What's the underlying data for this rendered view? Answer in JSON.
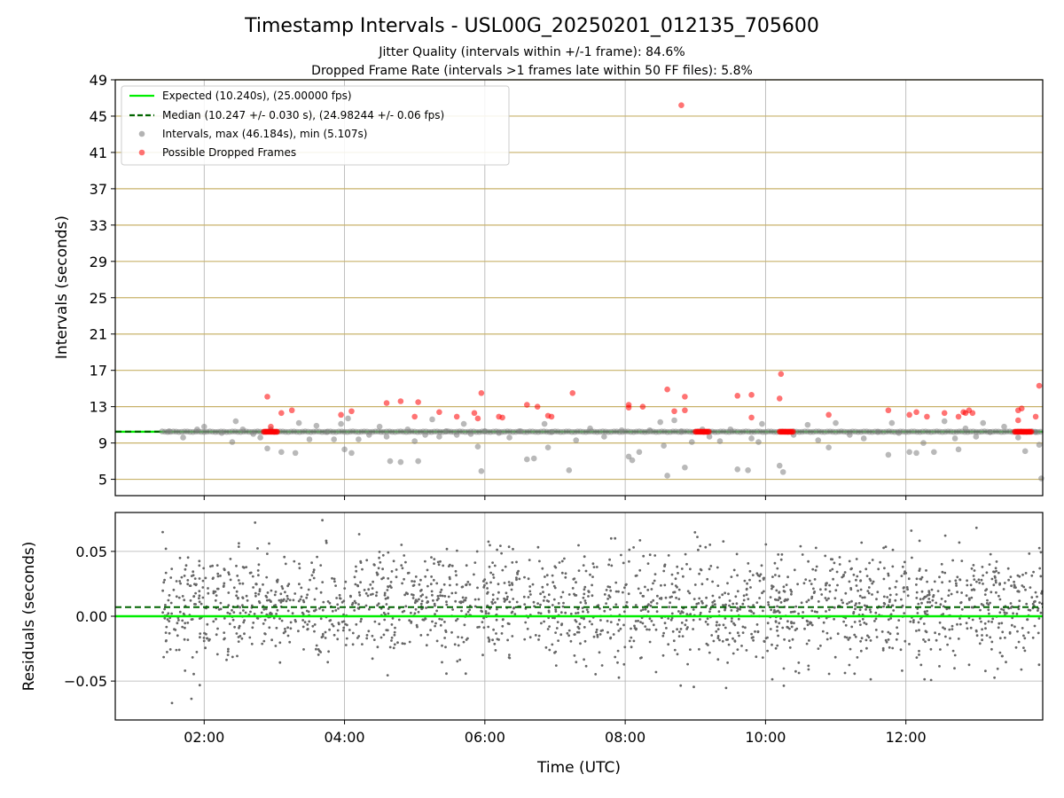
{
  "chart_data": [
    {
      "type": "scatter",
      "title": "Timestamp Intervals - USL00G_20250201_012135_705600",
      "subtitles": [
        "Jitter Quality (intervals within +/-1 frame): 84.6%",
        "Dropped Frame Rate (intervals >1 frames late within 50 FF files): 5.8%"
      ],
      "ylabel": "Intervals (seconds)",
      "xlim": [
        0.733,
        13.95
      ],
      "ylim": [
        3.2,
        49
      ],
      "yticks": [
        "5",
        "9",
        "13",
        "17",
        "21",
        "25",
        "29",
        "33",
        "37",
        "41",
        "45",
        "49"
      ],
      "grid": true,
      "legend_position": "upper-left",
      "expected_value": 10.24,
      "median_value": 10.247,
      "legend": [
        "Expected (10.240s), (25.00000 fps)",
        "Median (10.247 +/- 0.030 s), (24.98244 +/- 0.06 fps)",
        "Intervals, max (46.184s), min (5.107s)",
        "Possible Dropped Frames"
      ],
      "series": [
        {
          "name": "Intervals, max (46.184s), min (5.107s)",
          "color": "#808080",
          "points": [
            [
              1.5,
              10.3
            ],
            [
              1.7,
              9.6
            ],
            [
              1.9,
              10.5
            ],
            [
              2.0,
              10.8
            ],
            [
              2.25,
              10.1
            ],
            [
              2.4,
              9.1
            ],
            [
              2.45,
              11.4
            ],
            [
              2.55,
              10.5
            ],
            [
              2.7,
              10.0
            ],
            [
              2.8,
              9.6
            ],
            [
              2.9,
              8.4
            ],
            [
              2.95,
              10.5
            ],
            [
              3.1,
              8.0
            ],
            [
              3.3,
              7.9
            ],
            [
              3.35,
              11.2
            ],
            [
              3.5,
              9.4
            ],
            [
              3.6,
              10.9
            ],
            [
              3.75,
              10.2
            ],
            [
              3.85,
              9.4
            ],
            [
              3.95,
              11.1
            ],
            [
              4.0,
              8.3
            ],
            [
              4.05,
              11.7
            ],
            [
              4.1,
              7.9
            ],
            [
              4.2,
              9.4
            ],
            [
              4.35,
              9.9
            ],
            [
              4.5,
              10.8
            ],
            [
              4.6,
              9.7
            ],
            [
              4.65,
              7.0
            ],
            [
              4.8,
              6.9
            ],
            [
              4.9,
              10.5
            ],
            [
              5.0,
              9.2
            ],
            [
              5.05,
              7.0
            ],
            [
              5.15,
              9.9
            ],
            [
              5.25,
              11.6
            ],
            [
              5.35,
              9.7
            ],
            [
              5.45,
              10.3
            ],
            [
              5.6,
              9.9
            ],
            [
              5.7,
              11.1
            ],
            [
              5.8,
              10.0
            ],
            [
              5.9,
              8.6
            ],
            [
              5.95,
              5.9
            ],
            [
              6.0,
              10.3
            ],
            [
              6.2,
              10.1
            ],
            [
              6.35,
              9.6
            ],
            [
              6.5,
              10.3
            ],
            [
              6.6,
              7.2
            ],
            [
              6.7,
              7.3
            ],
            [
              6.85,
              11.1
            ],
            [
              6.9,
              8.5
            ],
            [
              6.95,
              10.2
            ],
            [
              7.2,
              6.0
            ],
            [
              7.3,
              9.3
            ],
            [
              7.5,
              10.6
            ],
            [
              7.7,
              9.7
            ],
            [
              7.95,
              10.4
            ],
            [
              8.05,
              7.5
            ],
            [
              8.1,
              7.1
            ],
            [
              8.2,
              8.0
            ],
            [
              8.35,
              10.4
            ],
            [
              8.5,
              11.3
            ],
            [
              8.55,
              8.7
            ],
            [
              8.6,
              5.4
            ],
            [
              8.7,
              11.5
            ],
            [
              8.8,
              10.3
            ],
            [
              8.85,
              6.3
            ],
            [
              8.95,
              9.1
            ],
            [
              9.1,
              10.5
            ],
            [
              9.2,
              9.7
            ],
            [
              9.35,
              9.2
            ],
            [
              9.5,
              10.5
            ],
            [
              9.6,
              6.1
            ],
            [
              9.75,
              6.0
            ],
            [
              9.8,
              9.5
            ],
            [
              9.9,
              9.1
            ],
            [
              9.95,
              11.1
            ],
            [
              10.2,
              6.5
            ],
            [
              10.25,
              5.8
            ],
            [
              10.4,
              9.9
            ],
            [
              10.6,
              11.0
            ],
            [
              10.75,
              9.3
            ],
            [
              10.9,
              8.5
            ],
            [
              11.0,
              11.2
            ],
            [
              11.2,
              9.9
            ],
            [
              11.4,
              9.5
            ],
            [
              11.6,
              10.2
            ],
            [
              11.75,
              7.7
            ],
            [
              11.8,
              11.2
            ],
            [
              11.9,
              10.1
            ],
            [
              12.05,
              8.0
            ],
            [
              12.15,
              7.9
            ],
            [
              12.25,
              9.0
            ],
            [
              12.4,
              8.0
            ],
            [
              12.55,
              11.4
            ],
            [
              12.7,
              9.5
            ],
            [
              12.75,
              8.3
            ],
            [
              12.85,
              10.6
            ],
            [
              13.0,
              9.7
            ],
            [
              13.1,
              11.2
            ],
            [
              13.2,
              10.2
            ],
            [
              13.4,
              10.8
            ],
            [
              13.6,
              9.6
            ],
            [
              13.7,
              8.1
            ],
            [
              13.85,
              10.2
            ],
            [
              13.9,
              8.8
            ],
            [
              13.93,
              5.1
            ]
          ]
        },
        {
          "name": "Possible Dropped Frames",
          "color": "#ff0000",
          "points": [
            [
              2.9,
              14.1
            ],
            [
              2.95,
              10.8
            ],
            [
              3.1,
              12.3
            ],
            [
              3.25,
              12.6
            ],
            [
              3.95,
              12.1
            ],
            [
              4.1,
              12.5
            ],
            [
              4.6,
              13.4
            ],
            [
              4.8,
              13.6
            ],
            [
              5.0,
              11.9
            ],
            [
              5.05,
              13.5
            ],
            [
              5.35,
              12.4
            ],
            [
              5.6,
              11.9
            ],
            [
              5.85,
              12.3
            ],
            [
              5.9,
              11.7
            ],
            [
              5.95,
              14.5
            ],
            [
              6.2,
              11.9
            ],
            [
              6.25,
              11.8
            ],
            [
              6.6,
              13.2
            ],
            [
              6.75,
              13.0
            ],
            [
              6.9,
              12.0
            ],
            [
              6.95,
              11.9
            ],
            [
              7.25,
              14.5
            ],
            [
              8.05,
              12.9
            ],
            [
              8.05,
              13.2
            ],
            [
              8.25,
              13.0
            ],
            [
              8.6,
              14.9
            ],
            [
              8.7,
              12.5
            ],
            [
              8.85,
              12.6
            ],
            [
              8.85,
              14.1
            ],
            [
              9.6,
              14.2
            ],
            [
              9.8,
              14.3
            ],
            [
              9.8,
              11.8
            ],
            [
              10.2,
              13.9
            ],
            [
              10.22,
              16.6
            ],
            [
              10.9,
              12.1
            ],
            [
              11.75,
              12.6
            ],
            [
              12.05,
              12.1
            ],
            [
              12.15,
              12.4
            ],
            [
              12.3,
              11.9
            ],
            [
              12.55,
              12.3
            ],
            [
              12.75,
              11.9
            ],
            [
              12.82,
              12.4
            ],
            [
              12.85,
              12.3
            ],
            [
              12.9,
              12.6
            ],
            [
              12.95,
              12.3
            ],
            [
              13.6,
              11.5
            ],
            [
              13.6,
              12.6
            ],
            [
              13.65,
              12.8
            ],
            [
              13.85,
              11.9
            ],
            [
              13.9,
              15.3
            ],
            [
              8.8,
              46.2
            ]
          ],
          "clusters": [
            [
              2.85,
              3.05
            ],
            [
              9.0,
              9.2
            ],
            [
              10.2,
              10.4
            ],
            [
              13.55,
              13.8
            ]
          ],
          "cluster_value": 10.24
        }
      ]
    },
    {
      "type": "scatter",
      "ylabel": "Residuals (seconds)",
      "xlabel": "Time (UTC)",
      "xlim": [
        0.733,
        13.95
      ],
      "ylim": [
        -0.08,
        0.08
      ],
      "xticks": [
        {
          "value": 2,
          "label": "02:00"
        },
        {
          "value": 4,
          "label": "04:00"
        },
        {
          "value": 6,
          "label": "06:00"
        },
        {
          "value": 8,
          "label": "08:00"
        },
        {
          "value": 10,
          "label": "10:00"
        },
        {
          "value": 12,
          "label": "12:00"
        }
      ],
      "yticks": [
        {
          "value": 0.05,
          "label": "0.05"
        },
        {
          "value": 0.0,
          "label": "0.00"
        },
        {
          "value": -0.05,
          "label": "−0.05"
        }
      ],
      "grid": true,
      "expected_residual": 0.0,
      "median_residual": 0.007,
      "x_range": [
        1.4,
        13.95
      ],
      "point_count": 2000,
      "spread_sigma": 0.025,
      "color": "#666666"
    }
  ]
}
